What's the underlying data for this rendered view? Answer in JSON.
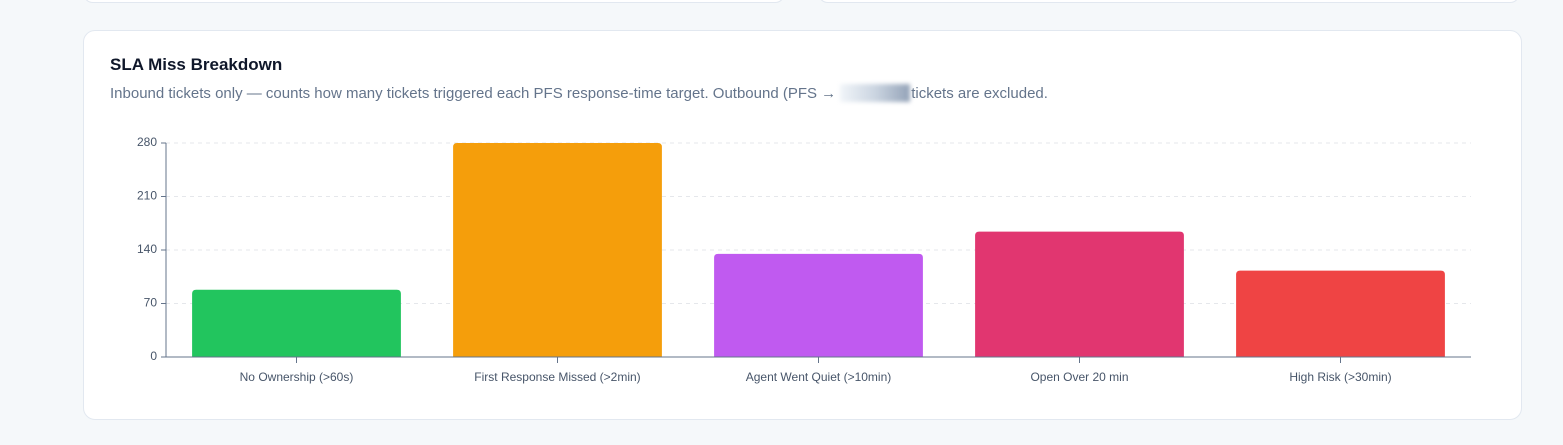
{
  "chart_data": {
    "type": "bar",
    "title": "SLA Miss Breakdown",
    "subtitle": [
      "Inbound tickets only — counts how many tickets triggered each PFS response-time target. Outbound (PFS →",
      "tickets are excluded."
    ],
    "categories": [
      "No Ownership (>60s)",
      "First Response Missed (>2min)",
      "Agent Went Quiet (>10min)",
      "Open Over 20 min",
      "High Risk (>30min)"
    ],
    "values": [
      88,
      280,
      135,
      164,
      113
    ],
    "colors": [
      "#22c55e",
      "#f59e0b",
      "#c05af0",
      "#e13670",
      "#ef4444"
    ],
    "ylim": [
      0,
      280
    ],
    "yticks": [
      0,
      70,
      140,
      210,
      280
    ],
    "grid": true
  }
}
